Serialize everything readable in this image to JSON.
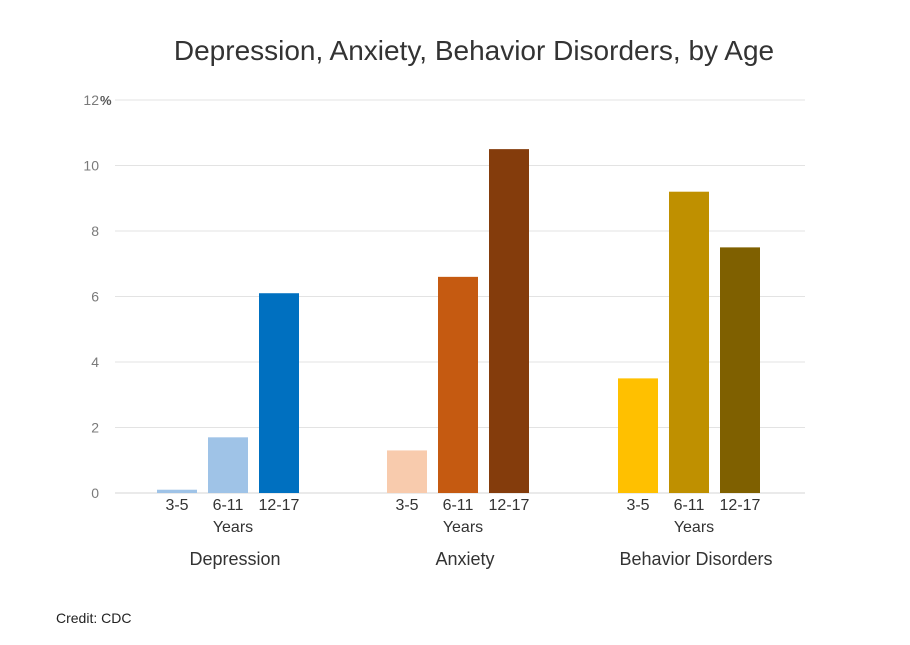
{
  "chart_data": {
    "type": "bar",
    "title": "Depression, Anxiety, Behavior Disorders, by Age",
    "ylim": [
      0,
      12
    ],
    "y_ticks": [
      "0",
      "2",
      "4",
      "6",
      "8",
      "10",
      "12"
    ],
    "y_unit_suffix": "%",
    "grid": true,
    "legend": "none",
    "x_sublabel": "Years",
    "groups": [
      {
        "name": "Depression",
        "categories": [
          "3-5",
          "6-11",
          "12-17"
        ],
        "values": [
          0.1,
          1.7,
          6.1
        ],
        "colors": [
          "#9fc3e7",
          "#9fc3e7",
          "#0070c0"
        ]
      },
      {
        "name": "Anxiety",
        "categories": [
          "3-5",
          "6-11",
          "12-17"
        ],
        "values": [
          1.3,
          6.6,
          10.5
        ],
        "colors": [
          "#f8cbad",
          "#c55a11",
          "#843c0c"
        ]
      },
      {
        "name": "Behavior Disorders",
        "categories": [
          "3-5",
          "6-11",
          "12-17"
        ],
        "values": [
          3.5,
          9.2,
          7.5
        ],
        "colors": [
          "#ffc000",
          "#bf9000",
          "#7f6000"
        ]
      }
    ]
  },
  "credit": "Credit: CDC"
}
